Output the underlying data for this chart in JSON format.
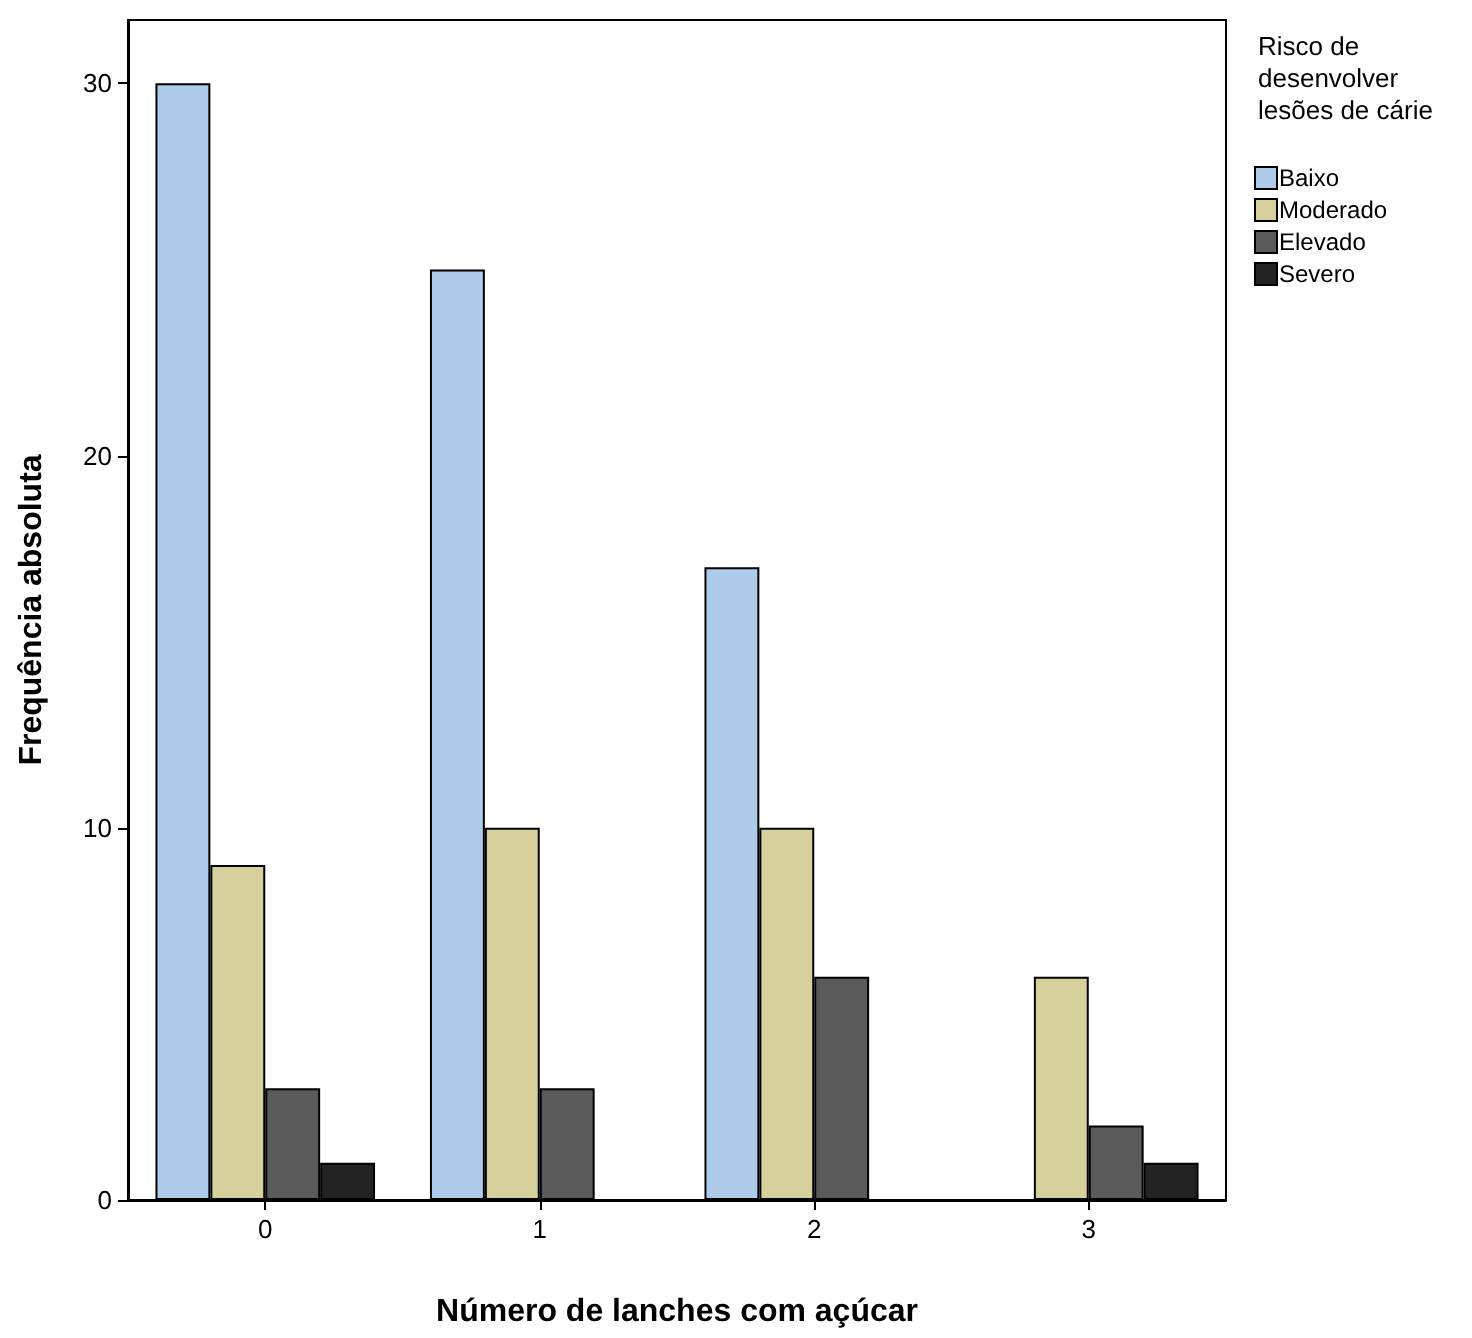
{
  "chart_data": {
    "type": "bar",
    "xlabel": "Número de lanches com açúcar",
    "ylabel": "Frequência absoluta",
    "legend_title": "Risco de desenvolver lesões de cárie",
    "categories": [
      "0",
      "1",
      "2",
      "3"
    ],
    "series": [
      {
        "name": "Baixo",
        "color": "#aecbea",
        "values": [
          30,
          25,
          17,
          0
        ]
      },
      {
        "name": "Moderado",
        "color": "#d5d09c",
        "values": [
          9,
          10,
          10,
          6
        ]
      },
      {
        "name": "Elevado",
        "color": "#5a5a5a",
        "values": [
          3,
          3,
          6,
          2
        ]
      },
      {
        "name": "Severo",
        "color": "#222222",
        "values": [
          1,
          0,
          0,
          1
        ]
      }
    ],
    "ylim": [
      0,
      31.7
    ],
    "yticks": [
      0,
      10,
      20,
      30
    ],
    "grid": false,
    "legend": "right"
  }
}
